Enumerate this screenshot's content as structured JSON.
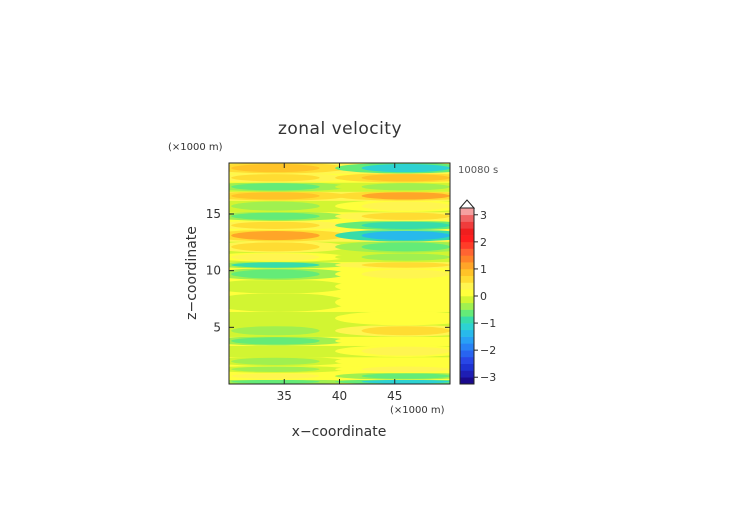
{
  "chart_data": {
    "type": "heatmap",
    "title": "zonal velocity",
    "xlabel": "x−coordinate",
    "ylabel": "z−coordinate",
    "x_unit": "(×1000 m)",
    "y_unit": "(×1000 m)",
    "time_label": "10080 s",
    "xlim": [
      30,
      50
    ],
    "ylim": [
      0,
      19.5
    ],
    "x_ticks": [
      35,
      40,
      45
    ],
    "y_ticks": [
      5,
      10,
      15
    ],
    "colorbar": {
      "levels": [
        -3.25,
        -3,
        -2.75,
        -2.5,
        -2.25,
        -2,
        -1.75,
        -1.5,
        -1.25,
        -1,
        -0.75,
        -0.5,
        -0.25,
        0,
        0.25,
        0.5,
        0.75,
        1,
        1.25,
        1.5,
        1.75,
        2,
        2.25,
        2.5,
        2.75,
        3,
        3.25
      ],
      "colors": [
        "#1a0a8c",
        "#1e1eb4",
        "#1e32d2",
        "#2846e6",
        "#2864f0",
        "#2882f5",
        "#28a0f5",
        "#28b9eb",
        "#2dd2d2",
        "#37dcaa",
        "#64eb78",
        "#a0f050",
        "#d2f532",
        "#ffff3c",
        "#fff550",
        "#ffdc32",
        "#ffc328",
        "#ffa528",
        "#ff8228",
        "#ff6432",
        "#ff3c28",
        "#ff1e1e",
        "#f01e1e",
        "#f03c3c",
        "#f06464",
        "#f5a0a0"
      ],
      "tick_labels": [
        "3",
        "2",
        "1",
        "0",
        "−1",
        "−2",
        "−3"
      ],
      "tick_values": [
        3,
        2,
        1,
        0,
        -1,
        -2,
        -3
      ]
    },
    "bands": [
      {
        "z": [
          0,
          0.4
        ],
        "left": -0.6,
        "right": -1.2
      },
      {
        "z": [
          0.4,
          1.0
        ],
        "left": 0.4,
        "right": -0.6
      },
      {
        "z": [
          1.0,
          1.6
        ],
        "left": -0.4,
        "right": 0.4
      },
      {
        "z": [
          1.6,
          2.4
        ],
        "left": -0.3,
        "right": 0.2
      },
      {
        "z": [
          2.4,
          3.4
        ],
        "left": -0.2,
        "right": 0.3
      },
      {
        "z": [
          3.4,
          4.2
        ],
        "left": -0.6,
        "right": 0.15
      },
      {
        "z": [
          4.2,
          5.2
        ],
        "left": -0.3,
        "right": 0.6
      },
      {
        "z": [
          5.2,
          6.4
        ],
        "left": -0.1,
        "right": 0.2
      },
      {
        "z": [
          6.4,
          8.0
        ],
        "left": -0.2,
        "right": 0.1
      },
      {
        "z": [
          8.0,
          9.2
        ],
        "left": -0.15,
        "right": 0.05
      },
      {
        "z": [
          9.2,
          10.2
        ],
        "left": -0.6,
        "right": 0.4
      },
      {
        "z": [
          10.2,
          10.8
        ],
        "left": -0.8,
        "right": 0.6
      },
      {
        "z": [
          10.8,
          11.6
        ],
        "left": 0.3,
        "right": -0.3
      },
      {
        "z": [
          11.6,
          12.6
        ],
        "left": 0.7,
        "right": -0.7
      },
      {
        "z": [
          12.6,
          13.6
        ],
        "left": 1.2,
        "right": -1.3
      },
      {
        "z": [
          13.6,
          14.4
        ],
        "left": 0.6,
        "right": -0.9
      },
      {
        "z": [
          14.4,
          15.2
        ],
        "left": -0.7,
        "right": 0.5
      },
      {
        "z": [
          15.2,
          16.2
        ],
        "left": -0.3,
        "right": 0.4
      },
      {
        "z": [
          16.2,
          17.0
        ],
        "left": 0.9,
        "right": 1.1
      },
      {
        "z": [
          17.0,
          17.8
        ],
        "left": -0.6,
        "right": -0.4
      },
      {
        "z": [
          17.8,
          18.6
        ],
        "left": 0.7,
        "right": 0.9
      },
      {
        "z": [
          18.6,
          19.5
        ],
        "left": 0.9,
        "right": -1.1
      }
    ]
  }
}
